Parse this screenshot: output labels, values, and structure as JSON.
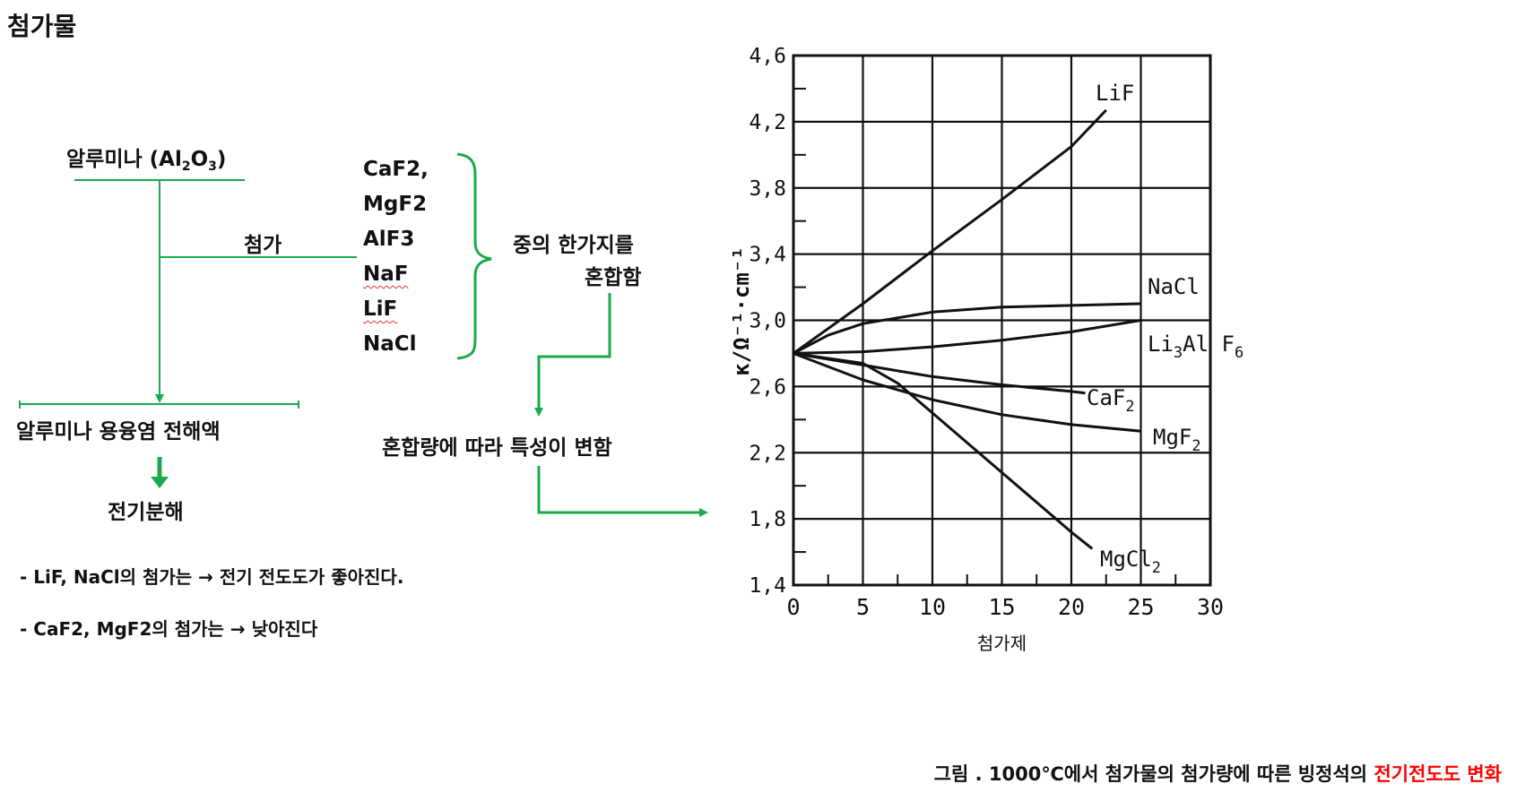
{
  "page": {
    "title": "첨가물"
  },
  "flow": {
    "alumina": "알루미나 (Al",
    "alumina_sub1": "2",
    "alumina_o": "O",
    "alumina_sub2": "3",
    "alumina_close": ")",
    "add_label": "첨가",
    "additives": [
      "CaF2,",
      "MgF2",
      "AlF3",
      "NaF",
      "LiF",
      "NaCl"
    ],
    "choose_one": "중의 한가지를",
    "mix": "혼합함",
    "electrolyte": "알루미나 용융염 전해액",
    "electrolysis": "전기분해",
    "property_change": "혼합량에 따라 특성이 변함",
    "note1": "- LiF, NaCl의 첨가는 → 전기 전도도가 좋아진다.",
    "note2": "- CaF2, MgF2의 첨가는 → 낮아진다"
  },
  "caption": {
    "main": "그림 . 1000℃에서 첨가물의 첨가량에 따른 빙정석의 ",
    "highlight": "전기전도도 변화",
    "highlight_color": "#ff0000"
  },
  "colors": {
    "arrow_green": "#1aaa4b",
    "chart_ink": "#111111"
  },
  "chart_data": {
    "type": "line",
    "xlabel": "첨가제",
    "ylabel": "κ/Ω⁻¹·cm⁻¹",
    "xlim": [
      0,
      30
    ],
    "ylim": [
      1.4,
      4.6
    ],
    "xticks": [
      "0",
      "5",
      "10",
      "15",
      "20",
      "25",
      "30"
    ],
    "yticks": [
      "1,4",
      "1,8",
      "2,2",
      "2,6",
      "3,0",
      "3,4",
      "3,8",
      "4,2",
      "4,6"
    ],
    "grid": true,
    "series": [
      {
        "name": "LiF",
        "label": "LiF",
        "x": [
          0,
          5,
          10,
          15,
          20,
          22.5
        ],
        "y": [
          2.8,
          3.1,
          3.42,
          3.73,
          4.05,
          4.27
        ]
      },
      {
        "name": "NaCl",
        "label": "NaCl",
        "x": [
          0,
          2.5,
          5,
          10,
          15,
          20,
          25
        ],
        "y": [
          2.8,
          2.91,
          2.98,
          3.05,
          3.08,
          3.09,
          3.1
        ]
      },
      {
        "name": "Li3AlF6",
        "label_main": "Li",
        "label_sub1": "3",
        "label_mid": "Al F",
        "label_sub2": "6",
        "x": [
          0,
          5,
          10,
          15,
          20,
          25
        ],
        "y": [
          2.8,
          2.81,
          2.84,
          2.88,
          2.93,
          3.0
        ]
      },
      {
        "name": "CaF2",
        "label_main": "CaF",
        "label_sub": "2",
        "x": [
          0,
          5,
          10,
          15,
          20,
          21
        ],
        "y": [
          2.8,
          2.73,
          2.66,
          2.61,
          2.57,
          2.56
        ]
      },
      {
        "name": "MgF2",
        "label_main": "MgF",
        "label_sub": "2",
        "x": [
          0,
          5,
          10,
          15,
          20,
          25
        ],
        "y": [
          2.8,
          2.64,
          2.52,
          2.43,
          2.37,
          2.33
        ]
      },
      {
        "name": "MgCl2",
        "label_main": "MgCl",
        "label_sub": "2",
        "x": [
          0,
          5,
          7.5,
          10,
          15,
          20,
          21.5
        ],
        "y": [
          2.8,
          2.74,
          2.62,
          2.44,
          2.08,
          1.72,
          1.62
        ]
      }
    ]
  }
}
